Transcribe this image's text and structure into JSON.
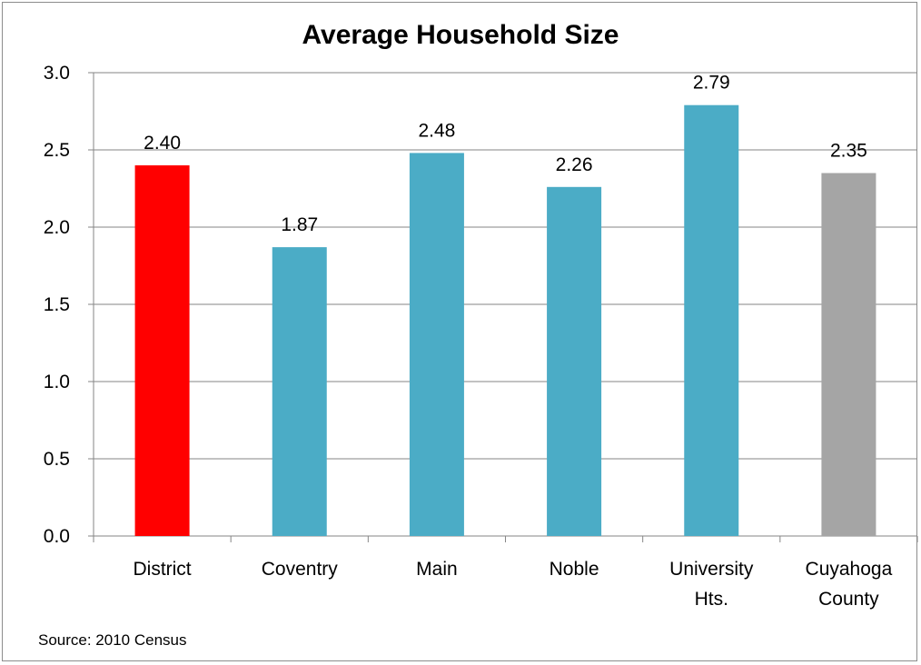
{
  "chart_data": {
    "type": "bar",
    "title": "Average Household Size",
    "xlabel": "",
    "ylabel": "",
    "ylim": [
      0,
      3.0
    ],
    "ytick_step": 0.5,
    "yticks": [
      "0.0",
      "0.5",
      "1.0",
      "1.5",
      "2.0",
      "2.5",
      "3.0"
    ],
    "grid": true,
    "legend": "none",
    "categories": [
      [
        "District"
      ],
      [
        "Coventry"
      ],
      [
        "Main"
      ],
      [
        "Noble"
      ],
      [
        "University",
        "Hts."
      ],
      [
        "Cuyahoga",
        "County"
      ]
    ],
    "values": [
      2.4,
      1.87,
      2.48,
      2.26,
      2.79,
      2.35
    ],
    "data_labels": [
      "2.40",
      "1.87",
      "2.48",
      "2.26",
      "2.79",
      "2.35"
    ],
    "colors": [
      "#ff0000",
      "#4bacc6",
      "#4bacc6",
      "#4bacc6",
      "#4bacc6",
      "#a5a5a5"
    ]
  },
  "footer": {
    "source": "Source: 2010 Census"
  }
}
